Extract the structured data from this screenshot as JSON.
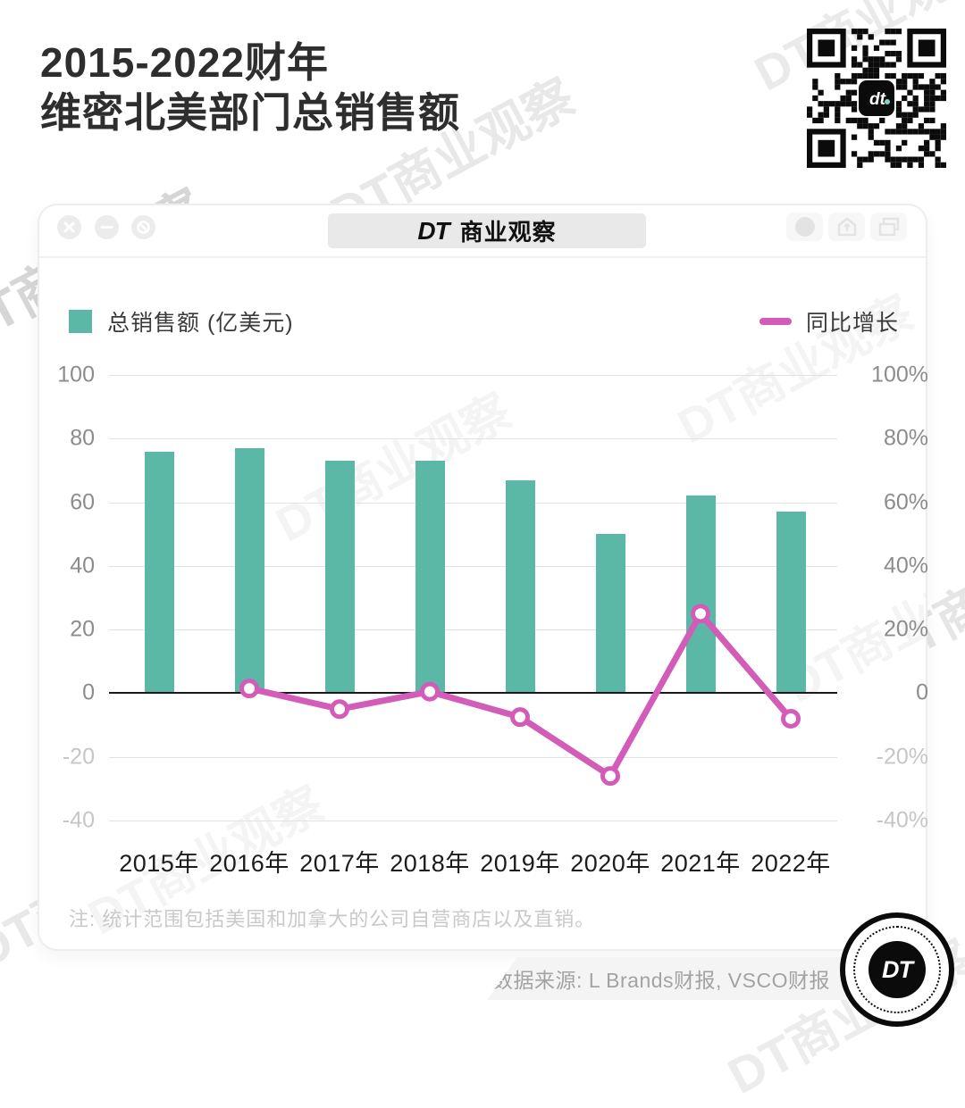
{
  "page": {
    "title_line1": "2015-2022财年",
    "title_line2": "维密北美部门总销售额",
    "watermark": "DT商业观察"
  },
  "window": {
    "brand": "DT",
    "brand_name": "商业观察",
    "controls_left": [
      "close-icon",
      "minimize-icon",
      "block-icon"
    ],
    "controls_right": [
      "circle-icon",
      "share-icon",
      "overlap-windows-icon"
    ]
  },
  "legend": {
    "bars_label": "总销售额 (亿美元)",
    "line_label": "同比增长"
  },
  "colors": {
    "bar": "#5cb8a6",
    "line": "#d25cb8",
    "zero_line": "#1a1a1a",
    "grid": "#e2e2e2",
    "tick_positive": "#8c8c8c",
    "tick_negative": "#c6c6c6"
  },
  "chart_data": {
    "type": "bar",
    "subtype": "bar+line combo, dual axis",
    "categories": [
      "2015年",
      "2016年",
      "2017年",
      "2018年",
      "2019年",
      "2020年",
      "2021年",
      "2022年"
    ],
    "series": [
      {
        "name": "总销售额 (亿美元)",
        "type": "bar",
        "axis": "left",
        "values": [
          76,
          77,
          73,
          73,
          67,
          50,
          62,
          57
        ]
      },
      {
        "name": "同比增长",
        "type": "line",
        "axis": "right",
        "unit": "%",
        "values": [
          null,
          1.5,
          -5,
          0.5,
          -7.5,
          -26,
          25,
          -8
        ]
      }
    ],
    "left_axis": {
      "ticks": [
        100,
        80,
        60,
        40,
        20,
        0,
        -20,
        -40
      ],
      "label": "亿美元"
    },
    "right_axis": {
      "ticks": [
        "100%",
        "80%",
        "60%",
        "40%",
        "20%",
        "0",
        "-20%",
        "-40%"
      ]
    },
    "ylim": [
      -40,
      100
    ],
    "grid": true,
    "legend_position": "top"
  },
  "note": "注: 统计范围包括美国和加拿大的公司自营商店以及直销。",
  "source": "数据来源: L Brands财报, VSCO财报",
  "logo": {
    "text": "DT"
  },
  "qr": {
    "center_text": "dt",
    "center_dot_color": "#7fd4c4"
  }
}
